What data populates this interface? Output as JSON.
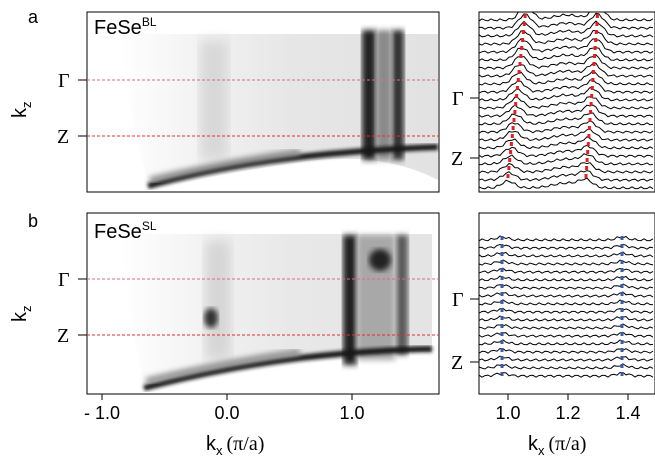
{
  "panels": [
    {
      "letter": "a",
      "title_main": "FeSe",
      "title_sup": "BL",
      "ylabel_main": "k",
      "ylabel_sub": "z",
      "tick_gamma": "Γ",
      "tick_z": "Z",
      "ref_line_colors": [
        "#d86a8c",
        "#e03030"
      ],
      "edc_marker_color": "#e02020"
    },
    {
      "letter": "b",
      "title_main": "FeSe",
      "title_sup": "SL",
      "ylabel_main": "k",
      "ylabel_sub": "z",
      "tick_gamma": "Γ",
      "tick_z": "Z",
      "ref_line_colors": [
        "#d86a8c",
        "#e03030"
      ],
      "edc_marker_color": "#3c5aa6"
    }
  ],
  "x_axis_left": {
    "label_main": "k",
    "label_sub": "x",
    "label_units": "(π/a)",
    "tick_labels": [
      "- 1.0",
      "0.0",
      "1.0"
    ]
  },
  "x_axis_right": {
    "label_main": "k",
    "label_sub": "x",
    "label_units": "(π/a)",
    "tick_labels": [
      "1.0",
      "1.2",
      "1.4"
    ]
  },
  "chart_data": [
    {
      "panel": "a-map",
      "type": "heatmap",
      "xlim": [
        -1.1,
        1.7
      ],
      "x_ticks": [
        -1.0,
        0.0,
        1.0
      ],
      "y_ticks": [
        "Γ",
        "Z"
      ],
      "bright_bands_kx": [
        1.0,
        1.15
      ]
    },
    {
      "panel": "a-edc",
      "type": "line",
      "xlim": [
        0.88,
        1.48
      ],
      "x_ticks": [
        1.0,
        1.2,
        1.4
      ],
      "curve_count": 22,
      "peak_positions_kx": {
        "left": [
          1.06,
          1.0
        ],
        "right": [
          1.3,
          1.26
        ]
      }
    },
    {
      "panel": "b-map",
      "type": "heatmap",
      "xlim": [
        -1.1,
        1.7
      ],
      "x_ticks": [
        -1.0,
        0.0,
        1.0
      ],
      "y_ticks": [
        "Γ",
        "Z"
      ],
      "bright_bands_kx": [
        1.0,
        1.25
      ]
    },
    {
      "panel": "b-edc",
      "type": "line",
      "xlim": [
        0.88,
        1.48
      ],
      "x_ticks": [
        1.0,
        1.2,
        1.4
      ],
      "curve_count": 18,
      "peak_positions_kx": {
        "left": [
          0.98,
          0.98
        ],
        "right": [
          1.38,
          1.38
        ]
      }
    }
  ]
}
